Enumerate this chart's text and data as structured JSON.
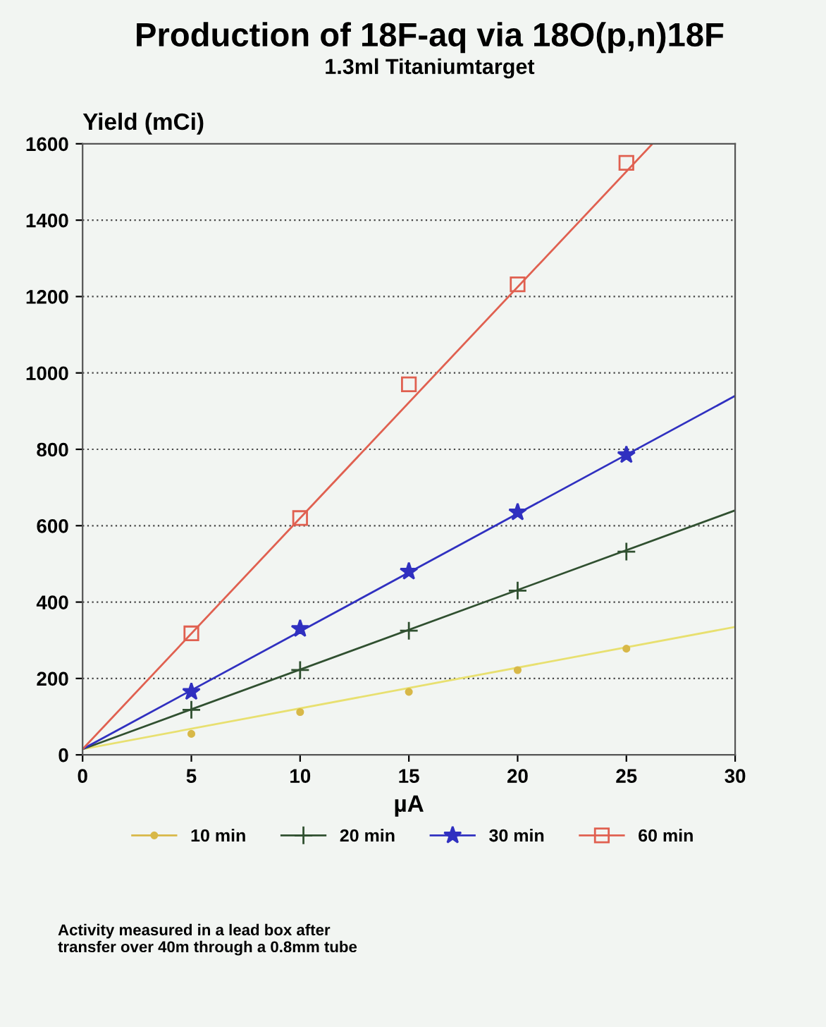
{
  "chart_data": {
    "type": "scatter",
    "title": "Production of 18F-aq via 18O(p,n)18F",
    "subtitle": "1.3ml Titaniumtarget",
    "xlabel": "µA",
    "ylabel": "Yield (mCi)",
    "annotations": [
      "Activity measured in a lead box after\ntransfer over 40m through a 0.8mm tube"
    ],
    "xlim": [
      0,
      30
    ],
    "xticks": [
      0,
      5,
      10,
      15,
      20,
      25,
      30
    ],
    "ylim": [
      0,
      1600
    ],
    "yticks": [
      0,
      200,
      400,
      600,
      800,
      1000,
      1200,
      1400,
      1600
    ],
    "grid": "y",
    "legend": "bottom",
    "series": [
      {
        "type": "line",
        "color": "#e8e070",
        "x": [
          0,
          30
        ],
        "values": [
          15,
          335
        ]
      },
      {
        "type": "line",
        "color": "#305030",
        "x": [
          0,
          30
        ],
        "values": [
          15,
          640
        ]
      },
      {
        "type": "line",
        "color": "#3030c0",
        "x": [
          0,
          30
        ],
        "values": [
          15,
          940
        ]
      },
      {
        "type": "line",
        "color": "#e06050",
        "x": [
          0,
          26.2
        ],
        "values": [
          15,
          1600
        ]
      },
      {
        "name": "10 min",
        "color": "#d8b848",
        "marker": "circle",
        "x": [
          5,
          10,
          15,
          20,
          25
        ],
        "values": [
          55,
          112,
          165,
          222,
          278
        ]
      },
      {
        "name": "20 min",
        "color": "#305030",
        "marker": "cross",
        "x": [
          5,
          10,
          15,
          20,
          25
        ],
        "values": [
          118,
          222,
          325,
          430,
          532
        ]
      },
      {
        "name": "30 min",
        "color": "#3030c0",
        "marker": "star",
        "x": [
          5,
          10,
          15,
          20,
          25
        ],
        "values": [
          165,
          330,
          480,
          635,
          785
        ]
      },
      {
        "name": "60 min",
        "color": "#e06050",
        "marker": "square",
        "x": [
          5,
          10,
          15,
          20,
          25
        ],
        "values": [
          318,
          620,
          970,
          1232,
          1550
        ]
      }
    ]
  }
}
